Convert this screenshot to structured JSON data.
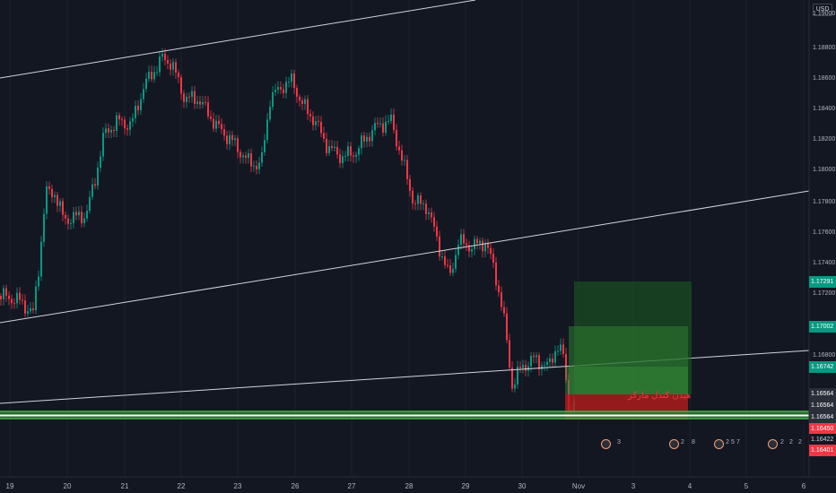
{
  "app": {
    "currency_badge": "USD"
  },
  "annotation": {
    "text": "هیدن کندل مارکر"
  },
  "price_axis": {
    "ticks": [
      "1.19000",
      "1.18800",
      "1.18600",
      "1.18400",
      "1.18200",
      "1.18000",
      "1.17800",
      "1.17600",
      "1.17400",
      "1.17200",
      "1.16800"
    ],
    "labels": [
      {
        "text": "1.17291",
        "color": "#089981"
      },
      {
        "text": "1.17002",
        "color": "#089981"
      },
      {
        "text": "1.16742",
        "color": "#089981"
      },
      {
        "text": "1.16564",
        "color": "#2a2e39"
      },
      {
        "text": "1.16564",
        "color": "#2a2e39"
      },
      {
        "text": "1.16564",
        "color": "#2a2e39"
      },
      {
        "text": "1.16450",
        "color": "#f23645"
      },
      {
        "text": "1.16422",
        "color": "#131722"
      },
      {
        "text": "1.16401",
        "color": "#f23645"
      }
    ]
  },
  "time_axis": {
    "labels": [
      "19",
      "20",
      "21",
      "22",
      "23",
      "26",
      "27",
      "28",
      "29",
      "30",
      "Nov",
      "3",
      "4",
      "5",
      "6"
    ]
  },
  "events": [
    {
      "text": "3"
    },
    {
      "text": "2"
    },
    {
      "text": "8"
    },
    {
      "text": "2"
    },
    {
      "text": "5"
    },
    {
      "text": "7"
    },
    {
      "text": "2"
    },
    {
      "text": "2"
    },
    {
      "text": "2"
    }
  ],
  "colors": {
    "up": "#089981",
    "down": "#f23645",
    "background": "#131722",
    "long_profit": "#1b5e20",
    "long_loss": "#b71c1c",
    "support": "#4caf50"
  },
  "chart_data": {
    "type": "candlestick",
    "symbol_currency": "USD",
    "ylim": [
      1.1636,
      1.1905
    ],
    "x_labels": [
      "19",
      "20",
      "21",
      "22",
      "23",
      "26",
      "27",
      "28",
      "29",
      "30",
      "Nov",
      "3",
      "4",
      "5",
      "6"
    ],
    "position": {
      "type": "long",
      "target": 1.17291,
      "entry": 1.16564,
      "stop": 1.16401,
      "other_levels": [
        1.17002,
        1.16742
      ]
    },
    "support_levels": [
      1.16564,
      1.1645
    ],
    "annotation": "هیدن کندل مارکر"
  }
}
